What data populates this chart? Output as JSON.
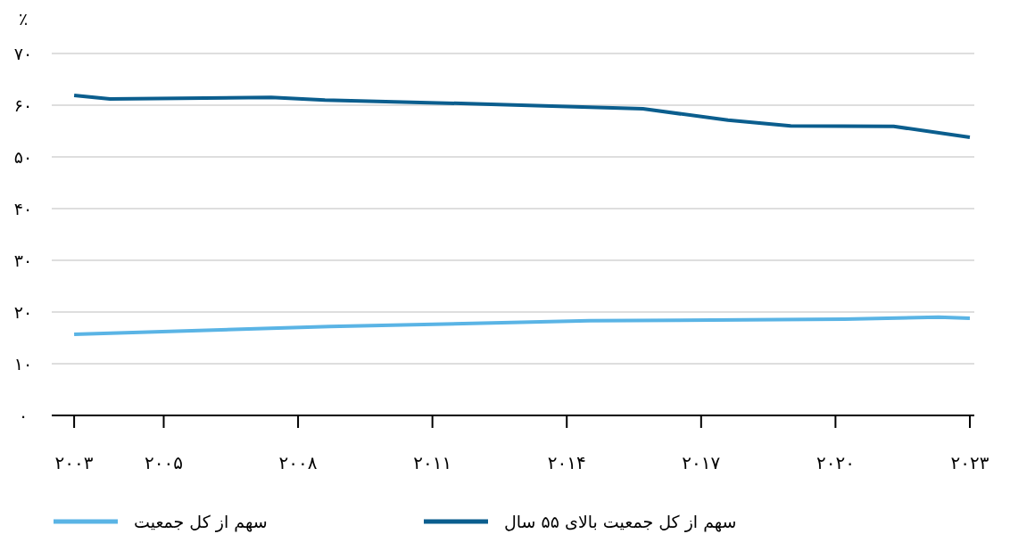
{
  "chart_data": {
    "type": "line",
    "ylabel": "٪",
    "xlim": [
      2002.5,
      2023.1
    ],
    "ylim": [
      0,
      70
    ],
    "xticks": [
      {
        "value": 2003,
        "label": "۲۰۰۳"
      },
      {
        "value": 2005,
        "label": "۲۰۰۵"
      },
      {
        "value": 2008,
        "label": "۲۰۰۸"
      },
      {
        "value": 2011,
        "label": "۲۰۱۱"
      },
      {
        "value": 2014,
        "label": "۲۰۱۴"
      },
      {
        "value": 2017,
        "label": "۲۰۱۷"
      },
      {
        "value": 2020,
        "label": "۲۰۲۰"
      },
      {
        "value": 2023,
        "label": "۲۰۲۳"
      }
    ],
    "yticks": [
      {
        "value": 0,
        "label": "۰"
      },
      {
        "value": 10,
        "label": "۱۰"
      },
      {
        "value": 20,
        "label": "۲۰"
      },
      {
        "value": 30,
        "label": "۳۰"
      },
      {
        "value": 40,
        "label": "۴۰"
      },
      {
        "value": 50,
        "label": "۵۰"
      },
      {
        "value": 60,
        "label": "۶۰"
      },
      {
        "value": 70,
        "label": "۷۰"
      }
    ],
    "grid": "y",
    "legend": "bottom",
    "series": [
      {
        "name": "سهم از کل جمعیت",
        "color": "#5ab4e5",
        "x": [
          2003,
          2008.7,
          2014.5,
          2020.2,
          2022.3,
          2023
        ],
        "values": [
          15.7,
          17.2,
          18.3,
          18.6,
          19.0,
          18.8
        ]
      },
      {
        "name": "سهم از کل جمعیت بالای ۵۵ سال",
        "color": "#0b5e8e",
        "x": [
          2003,
          2003.8,
          2007.4,
          2008.6,
          2011.8,
          2015.7,
          2017.6,
          2019,
          2021.3,
          2023
        ],
        "values": [
          61.9,
          61.2,
          61.5,
          61.0,
          60.3,
          59.3,
          57.1,
          56.0,
          55.9,
          53.8
        ]
      }
    ]
  }
}
